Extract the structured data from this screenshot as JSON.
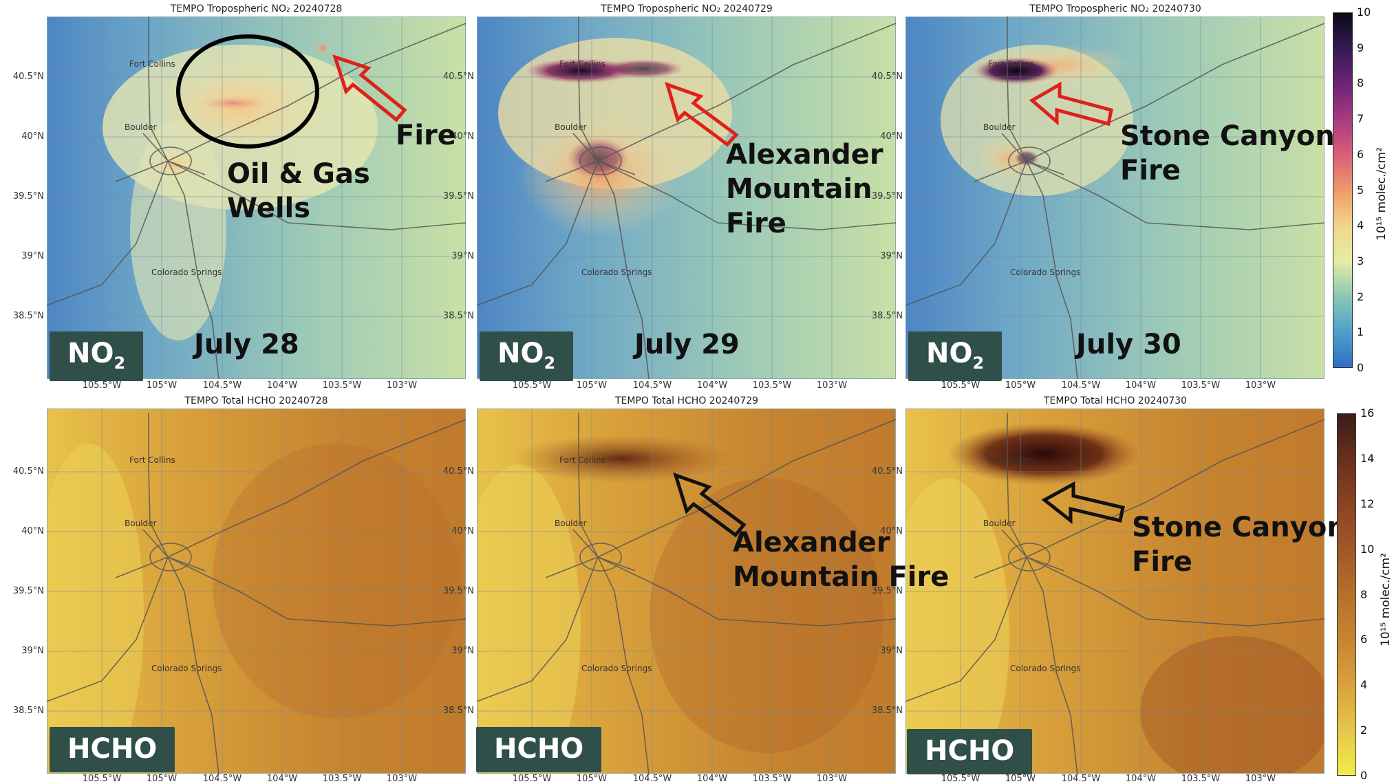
{
  "panels": [
    {
      "title": "TEMPO Tropospheric NO₂  20240728",
      "badge": "NO",
      "badge_sub": "2",
      "date": "July 28"
    },
    {
      "title": "TEMPO Tropospheric NO₂  20240729",
      "badge": "NO",
      "badge_sub": "2",
      "date": "July 29"
    },
    {
      "title": "TEMPO Tropospheric NO₂  20240730",
      "badge": "NO",
      "badge_sub": "2",
      "date": "July 30"
    },
    {
      "title": "TEMPO Total HCHO  20240728",
      "badge": "HCHO"
    },
    {
      "title": "TEMPO Total HCHO  20240729",
      "badge": "HCHO"
    },
    {
      "title": "TEMPO Total HCHO  20240730",
      "badge": "HCHO"
    }
  ],
  "lat_ticks": [
    "40.5°N",
    "40°N",
    "39.5°N",
    "39°N",
    "38.5°N"
  ],
  "lon_ticks": [
    "105.5°W",
    "105°W",
    "104.5°W",
    "104°W",
    "103.5°W",
    "103°W"
  ],
  "cities": {
    "fort_collins": "Fort Collins",
    "boulder": "Boulder",
    "colorado_springs": "Colorado Springs"
  },
  "annotations": {
    "fire": "Fire",
    "oil_gas_1": "Oil & Gas",
    "oil_gas_2": "Wells",
    "alex_no2_1": "Alexander",
    "alex_no2_2": "Mountain",
    "alex_no2_3": "Fire",
    "stone_no2_1": "Stone Canyon",
    "stone_no2_2": "Fire",
    "alex_hcho_1": "Alexander",
    "alex_hcho_2": "Mountain Fire",
    "stone_hcho_1": "Stone Canyon",
    "stone_hcho_2": "Fire"
  },
  "colorbars": {
    "no2": {
      "ticks": [
        "10",
        "9",
        "8",
        "7",
        "6",
        "5",
        "4",
        "3",
        "2",
        "1",
        "0"
      ],
      "range": [
        0,
        10
      ],
      "unit": "10¹⁵ molec./cm²"
    },
    "hcho": {
      "ticks": [
        "16",
        "14",
        "12",
        "10",
        "8",
        "6",
        "4",
        "2",
        "0"
      ],
      "range": [
        0,
        16
      ],
      "unit": "10¹⁵ molec./cm²"
    }
  },
  "colors": {
    "badge_bg": "#2f4f48",
    "arrow_red": "#e0201a",
    "arrow_black": "#111111"
  }
}
